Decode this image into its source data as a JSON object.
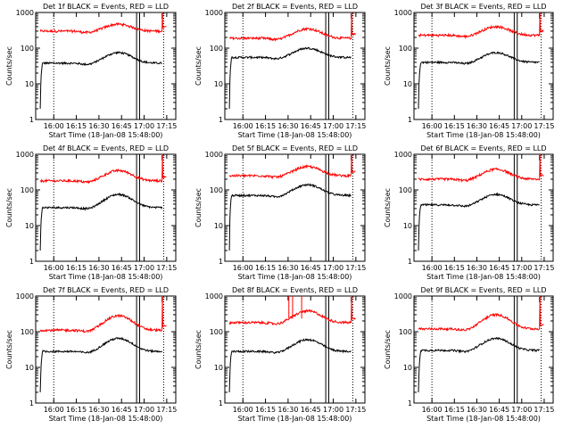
{
  "chart_data": {
    "type": "line",
    "ylabel": "Counts/sec",
    "xlabel": "Start Time (18-Jan-08 15:48:00)",
    "yscale": "log",
    "ylim": [
      1,
      1000
    ],
    "y_ticks": [
      1,
      10,
      100,
      1000
    ],
    "y_tick_labels": [
      "1",
      "10",
      "100",
      "1000"
    ],
    "x_range_minutes": [
      0,
      93
    ],
    "x_ticks": [
      "16:00",
      "16:15",
      "16:30",
      "16:45",
      "17:00",
      "17:15"
    ],
    "series_colors": {
      "events": "#000000",
      "lld": "#ff0000"
    },
    "panel_marker_label": "F",
    "panels": [
      {
        "title": "Det 1f BLACK = Events, RED = LLD",
        "events_base": 38,
        "lld_base": 300,
        "events_bump": 75,
        "lld_bump": 470,
        "spikes": [],
        "lld_spike": 1000
      },
      {
        "title": "Det 2f BLACK = Events, RED = LLD",
        "events_base": 55,
        "lld_base": 190,
        "events_bump": 100,
        "lld_bump": 350,
        "spikes": [],
        "lld_spike": 1000
      },
      {
        "title": "Det 3f BLACK = Events, RED = LLD",
        "events_base": 40,
        "lld_base": 230,
        "events_bump": 75,
        "lld_bump": 400,
        "spikes": [],
        "lld_spike": 1000
      },
      {
        "title": "Det 4f BLACK = Events, RED = LLD",
        "events_base": 32,
        "lld_base": 180,
        "events_bump": 75,
        "lld_bump": 350,
        "spikes": [],
        "lld_spike": 1000
      },
      {
        "title": "Det 5f BLACK = Events, RED = LLD",
        "events_base": 70,
        "lld_base": 250,
        "events_bump": 140,
        "lld_bump": 450,
        "spikes": [],
        "lld_spike": 1000
      },
      {
        "title": "Det 6f BLACK = Events, RED = LLD",
        "events_base": 38,
        "lld_base": 200,
        "events_bump": 75,
        "lld_bump": 380,
        "spikes": [],
        "lld_spike": 1000
      },
      {
        "title": "Det 7f BLACK = Events, RED = LLD",
        "events_base": 28,
        "lld_base": 110,
        "events_bump": 65,
        "lld_bump": 280,
        "spikes": [],
        "lld_spike": 1000
      },
      {
        "title": "Det 8f BLACK = Events, RED = LLD",
        "events_base": 28,
        "lld_base": 180,
        "events_bump": 60,
        "lld_bump": 380,
        "spikes": [
          [
            42.5,
            1000
          ],
          [
            45,
            1000
          ],
          [
            51,
            1000
          ]
        ],
        "lld_spike": 1000
      },
      {
        "title": "Det 9f BLACK = Events, RED = LLD",
        "events_base": 30,
        "lld_base": 120,
        "events_bump": 65,
        "lld_bump": 300,
        "spikes": [],
        "lld_spike": 1000
      }
    ]
  }
}
